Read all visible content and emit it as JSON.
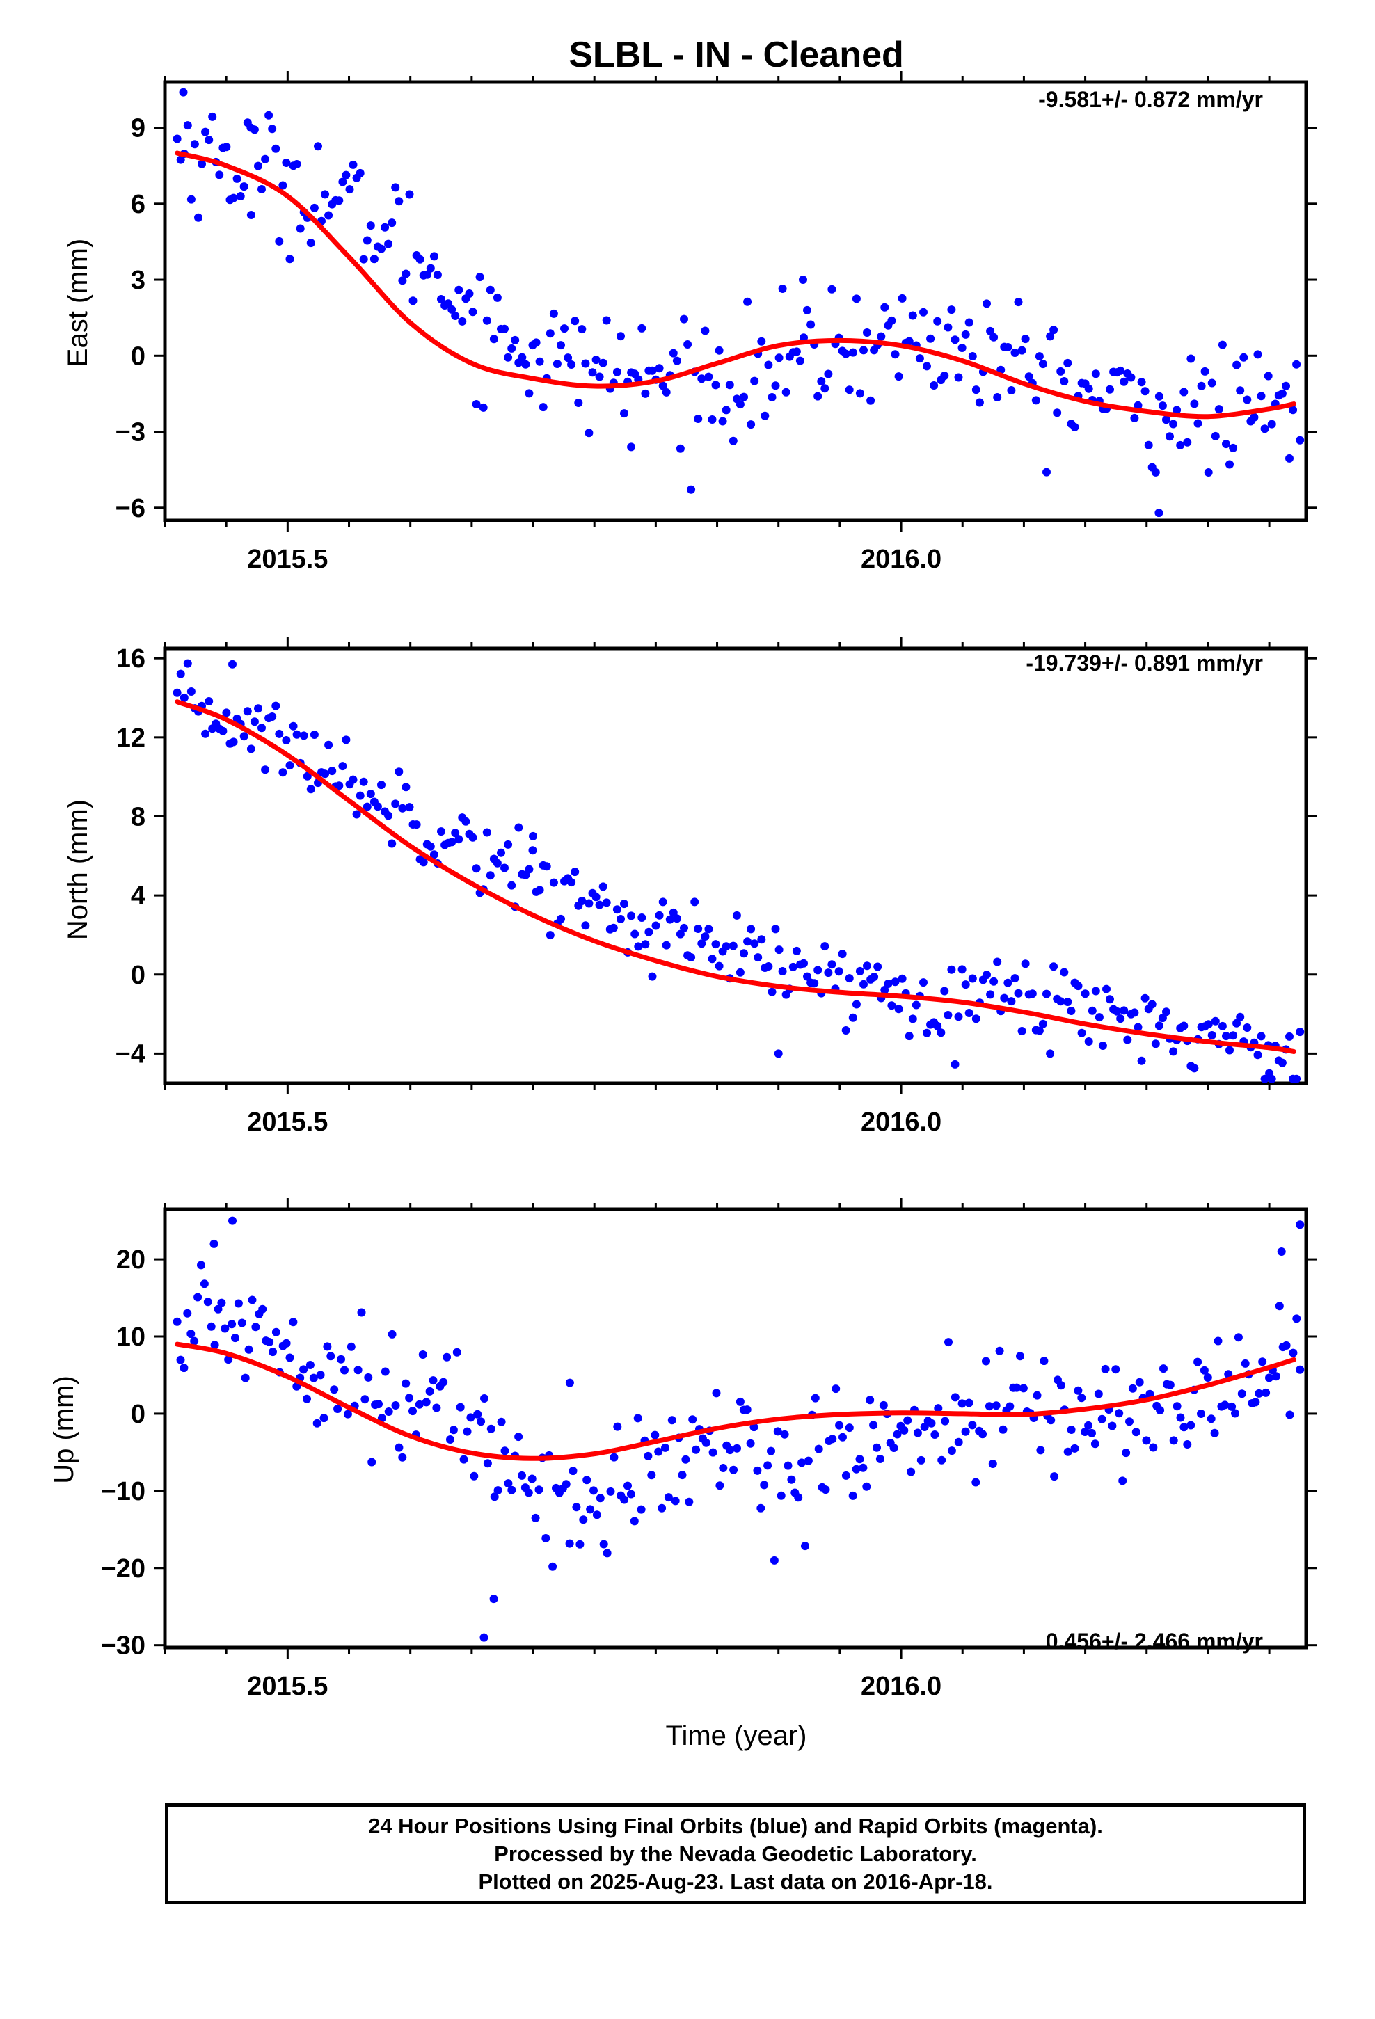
{
  "title": "SLBL  - IN - Cleaned",
  "xlabel": "Time (year)",
  "footer": {
    "line1": "24 Hour Positions Using Final Orbits (blue) and Rapid Orbits (magenta).",
    "line2": "Processed by the Nevada Geodetic Laboratory.",
    "line3": "Plotted on 2025-Aug-23. Last data on 2016-Apr-18."
  },
  "colors": {
    "points": "#0000ff",
    "fit": "#ff0000",
    "frame": "#000000"
  },
  "chart_data": [
    {
      "type": "scatter",
      "ylabel": "East (mm)",
      "rate_label": "-9.581+/- 0.872 mm/yr",
      "xlim": [
        2015.4,
        2016.33
      ],
      "ylim": [
        -6.5,
        10.8
      ],
      "xticks": [
        2015.5,
        2016.0
      ],
      "xtick_labels": [
        "2015.5",
        "2016.0"
      ],
      "yticks": [
        -6,
        -3,
        0,
        3,
        6,
        9
      ],
      "ytick_labels": [
        "−6",
        "−3",
        "0",
        "3",
        "6",
        "9"
      ],
      "fit": {
        "x": [
          2015.41,
          2015.45,
          2015.5,
          2015.55,
          2015.6,
          2015.65,
          2015.7,
          2015.75,
          2015.8,
          2015.85,
          2015.9,
          2015.95,
          2016.0,
          2016.05,
          2016.1,
          2016.15,
          2016.2,
          2016.25,
          2016.3,
          2016.32
        ],
        "y": [
          8.0,
          7.5,
          6.3,
          3.9,
          1.3,
          -0.3,
          -0.9,
          -1.2,
          -1.0,
          -0.3,
          0.4,
          0.6,
          0.4,
          -0.2,
          -1.1,
          -1.8,
          -2.2,
          -2.4,
          -2.1,
          -1.9
        ]
      },
      "points": {
        "base": [
          8.3,
          7.6,
          7.0,
          6.2,
          5.0,
          3.5,
          1.2,
          0.2,
          -0.5,
          -0.8,
          -1.1,
          -0.9,
          -0.4,
          0.3,
          0.6,
          0.5,
          -0.1,
          -0.9,
          -1.6,
          -2.1,
          -2.3,
          -2.2,
          -2.0
        ],
        "spread": 1.2,
        "n": 320,
        "extra": [
          [
            2015.415,
            10.4
          ],
          [
            2015.47,
            9.0
          ],
          [
            2015.92,
            3.0
          ],
          [
            2016.21,
            -6.2
          ],
          [
            2015.78,
            -3.6
          ]
        ]
      }
    },
    {
      "type": "scatter",
      "ylabel": "North (mm)",
      "rate_label": "-19.739+/- 0.891 mm/yr",
      "xlim": [
        2015.4,
        2016.33
      ],
      "ylim": [
        -5.5,
        16.5
      ],
      "xticks": [
        2015.5,
        2016.0
      ],
      "xtick_labels": [
        "2015.5",
        "2016.0"
      ],
      "yticks": [
        -4,
        0,
        4,
        8,
        12,
        16
      ],
      "ytick_labels": [
        "−4",
        "0",
        "4",
        "8",
        "12",
        "16"
      ],
      "fit": {
        "x": [
          2015.41,
          2015.45,
          2015.5,
          2015.55,
          2015.6,
          2015.65,
          2015.7,
          2015.75,
          2015.8,
          2015.85,
          2015.9,
          2015.95,
          2016.0,
          2016.05,
          2016.1,
          2016.15,
          2016.2,
          2016.25,
          2016.3,
          2016.32
        ],
        "y": [
          13.8,
          12.9,
          11.1,
          8.8,
          6.5,
          4.6,
          3.0,
          1.7,
          0.7,
          -0.1,
          -0.6,
          -0.9,
          -1.1,
          -1.4,
          -1.9,
          -2.5,
          -3.0,
          -3.4,
          -3.7,
          -3.9
        ]
      },
      "points": {
        "base": [
          13.5,
          13.0,
          11.8,
          10.5,
          8.9,
          7.6,
          6.2,
          4.8,
          3.6,
          2.6,
          1.7,
          0.9,
          0.2,
          -0.4,
          -0.8,
          -1.0,
          -1.0,
          -1.3,
          -1.8,
          -2.4,
          -3.0,
          -3.5,
          -3.9
        ],
        "spread": 1.0,
        "n": 320,
        "extra": [
          [
            2015.455,
            15.7
          ],
          [
            2015.9,
            -4.0
          ],
          [
            2016.3,
            -5.0
          ],
          [
            2015.7,
            7.0
          ]
        ]
      }
    },
    {
      "type": "scatter",
      "ylabel": "Up (mm)",
      "rate_label": "0.456+/- 2.466 mm/yr",
      "xlim": [
        2015.4,
        2016.33
      ],
      "ylim": [
        -30.3,
        26.5
      ],
      "xticks": [
        2015.5,
        2016.0
      ],
      "xtick_labels": [
        "2015.5",
        "2016.0"
      ],
      "yticks": [
        -30,
        -20,
        -10,
        0,
        10,
        20
      ],
      "ytick_labels": [
        "−30",
        "−20",
        "−10",
        "0",
        "10",
        "20"
      ],
      "fit": {
        "x": [
          2015.41,
          2015.45,
          2015.5,
          2015.55,
          2015.6,
          2015.65,
          2015.7,
          2015.75,
          2015.8,
          2015.85,
          2015.9,
          2015.95,
          2016.0,
          2016.05,
          2016.1,
          2016.15,
          2016.2,
          2016.25,
          2016.3,
          2016.32
        ],
        "y": [
          9.0,
          7.8,
          4.8,
          0.8,
          -2.9,
          -5.1,
          -5.8,
          -5.2,
          -3.6,
          -1.9,
          -0.7,
          -0.1,
          0.1,
          0.0,
          -0.1,
          0.6,
          1.8,
          3.7,
          6.0,
          7.0
        ]
      },
      "points": {
        "base": [
          11,
          12,
          10,
          6,
          3,
          1,
          -3,
          -9,
          -13,
          -8,
          -6,
          -4,
          -7,
          -5,
          -3,
          -1,
          0,
          0,
          0,
          0,
          1,
          5,
          8
        ],
        "spread": 4.0,
        "n": 330,
        "extra": [
          [
            2015.455,
            25.0
          ],
          [
            2015.66,
            -29.0
          ],
          [
            2015.668,
            -24.0
          ],
          [
            2016.325,
            24.5
          ],
          [
            2016.31,
            21.0
          ],
          [
            2015.44,
            22.0
          ],
          [
            2015.73,
            4.0
          ]
        ]
      }
    }
  ]
}
